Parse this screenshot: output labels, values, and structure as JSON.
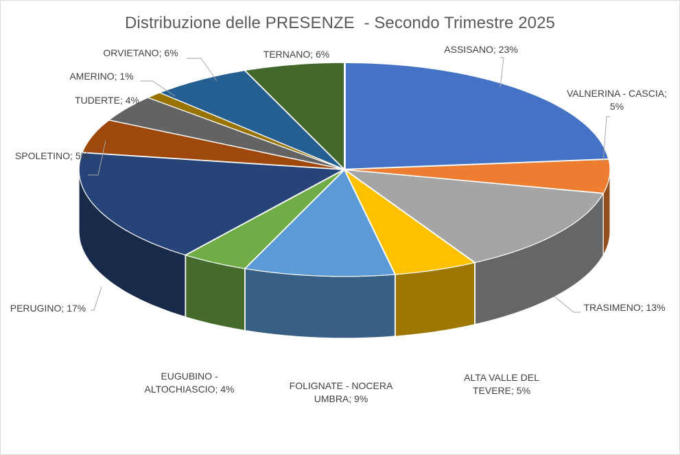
{
  "chart_data": {
    "type": "pie",
    "style": "3d",
    "title": "Distribuzione delle PRESENZE  - Secondo Trimestre 2025",
    "slices": [
      {
        "label": "ASSISANO",
        "value": 23,
        "display": "23%",
        "color": "#4472C4",
        "label_lines": [
          "ASSISANO; 23%"
        ]
      },
      {
        "label": "VALNERINA - CASCIA",
        "value": 5,
        "display": "5%",
        "color": "#ED7D31",
        "label_lines": [
          "VALNERINA - CASCIA;",
          "5%"
        ]
      },
      {
        "label": "TRASIMENO",
        "value": 13,
        "display": "13%",
        "color": "#A5A5A5",
        "label_lines": [
          "TRASIMENO; 13%"
        ]
      },
      {
        "label": "ALTA VALLE DEL TEVERE",
        "value": 5,
        "display": "5%",
        "color": "#FFC000",
        "label_lines": [
          "ALTA VALLE DEL",
          "TEVERE; 5%"
        ]
      },
      {
        "label": "FOLIGNATE - NOCERA UMBRA",
        "value": 9,
        "display": "9%",
        "color": "#5B9BD5",
        "label_lines": [
          "FOLIGNATE - NOCERA",
          "UMBRA; 9%"
        ]
      },
      {
        "label": "EUGUBINO - ALTOCHIASCIO",
        "value": 4,
        "display": "4%",
        "color": "#70AD47",
        "label_lines": [
          "EUGUBINO -",
          "ALTOCHIASCIO; 4%"
        ]
      },
      {
        "label": "PERUGINO",
        "value": 17,
        "display": "17%",
        "color": "#264478",
        "label_lines": [
          "PERUGINO; 17%"
        ]
      },
      {
        "label": "SPOLETINO",
        "value": 5,
        "display": "5%",
        "color": "#9E480E",
        "label_lines": [
          "SPOLETINO; 5%"
        ]
      },
      {
        "label": "TUDERTE",
        "value": 4,
        "display": "4%",
        "color": "#636363",
        "label_lines": [
          "TUDERTE; 4%"
        ]
      },
      {
        "label": "AMERINO",
        "value": 1,
        "display": "1%",
        "color": "#997300",
        "label_lines": [
          "AMERINO; 1%"
        ]
      },
      {
        "label": "ORVIETANO",
        "value": 6,
        "display": "6%",
        "color": "#255E91",
        "label_lines": [
          "ORVIETANO; 6%"
        ]
      },
      {
        "label": "TERNANO",
        "value": 6,
        "display": "6%",
        "color": "#43682B",
        "label_lines": [
          "TERNANO; 6%"
        ]
      }
    ],
    "legend": "none",
    "data_labels": "category; percent"
  }
}
